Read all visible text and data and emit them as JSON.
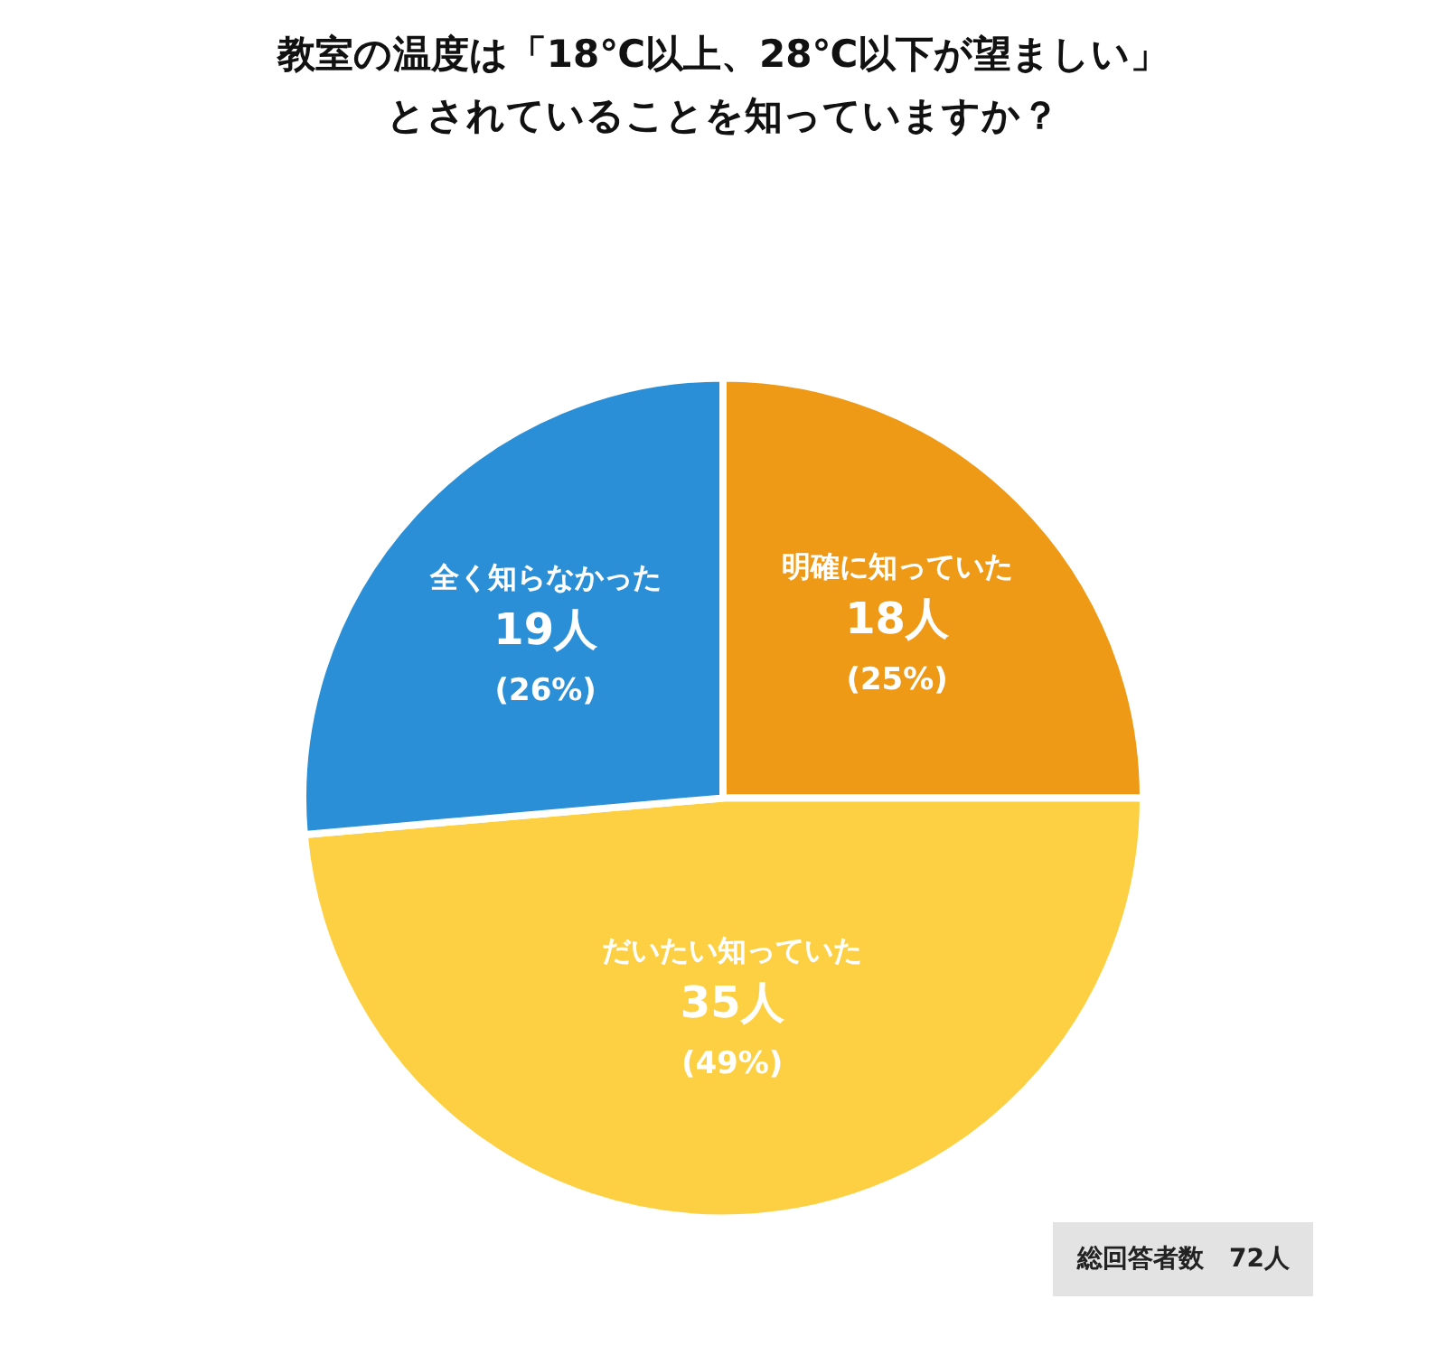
{
  "chart_data": {
    "type": "pie",
    "title": "教室の温度は「18℃以上、28℃以下が望ましい」とされていることを知っていますか？",
    "categories": [
      "明確に知っていた",
      "だいたい知っていた",
      "全く知らなかった"
    ],
    "values": [
      18,
      35,
      19
    ],
    "value_labels": [
      "18人\n(25%)",
      "35人\n(49%)",
      "19人\n(26%)"
    ],
    "colors": [
      "#ee9a16",
      "#fdd043",
      "#2a8fd6"
    ],
    "legend": false,
    "annotations": [
      "総回答者数　72人"
    ]
  }
}
